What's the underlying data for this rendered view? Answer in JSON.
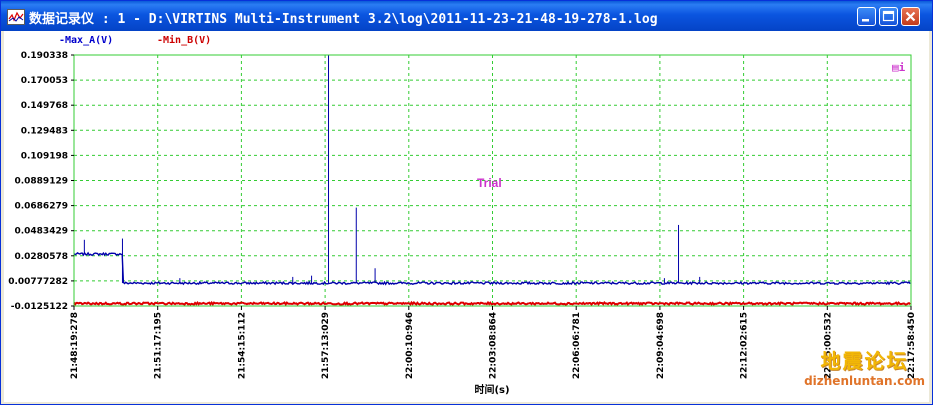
{
  "window": {
    "title": "数据记录仪 : 1 - D:\\VIRTINS Multi-Instrument 3.2\\log\\2011-11-23-21-48-19-278-1.log",
    "title_controls": [
      "minimize",
      "maximize",
      "close"
    ]
  },
  "legend": [
    {
      "label": "-Max_A(V)",
      "color": "#0000cc"
    },
    {
      "label": "-Min_B(V)",
      "color": "#cc0000"
    }
  ],
  "corner_label": "▤i",
  "trial_label": "Trial",
  "watermark": {
    "chinese": "地震论坛",
    "url": "dizhenluntan.com"
  },
  "colors": {
    "plot_border": "#33cc33",
    "grid": "#33cc33",
    "series_a": "#0000aa",
    "series_b": "#dd0000",
    "trial": "#cc33cc",
    "titlebar": "#0b55e0"
  },
  "chart_data": {
    "type": "line",
    "xlabel": "时间(s)",
    "ylabel": "",
    "grid": true,
    "x_ticks": [
      "21:48:19:278",
      "21:51:17:195",
      "21:54:15:112",
      "21:57:13:029",
      "22:00:10:946",
      "22:03:08:864",
      "22:06:06:781",
      "22:09:04:698",
      "22:12:02:615",
      "22:15:00:532",
      "22:17:58:450"
    ],
    "y_ticks": [
      "0.190338",
      "0.170053",
      "0.149768",
      "0.129483",
      "0.109198",
      "0.0889129",
      "0.0686279",
      "0.0483429",
      "0.0280578",
      "0.00777282",
      "-0.0125122"
    ],
    "ylim": [
      -0.0125122,
      0.190338
    ],
    "x_range_seconds": [
      0,
      1779.172
    ],
    "series": [
      {
        "name": "Max_A(V)",
        "baseline": 0.006,
        "initial_segment": {
          "x_end": 103,
          "level": 0.0295,
          "spike": 0.042
        },
        "spikes": [
          {
            "x": 22,
            "y": 0.041
          },
          {
            "x": 225,
            "y": 0.01
          },
          {
            "x": 465,
            "y": 0.011
          },
          {
            "x": 505,
            "y": 0.012
          },
          {
            "x": 541,
            "y": 0.190338
          },
          {
            "x": 600,
            "y": 0.067
          },
          {
            "x": 640,
            "y": 0.018
          },
          {
            "x": 1255,
            "y": 0.01
          },
          {
            "x": 1285,
            "y": 0.053
          },
          {
            "x": 1330,
            "y": 0.011
          }
        ]
      },
      {
        "name": "Min_B(V)",
        "baseline": -0.0105,
        "spikes": []
      }
    ]
  }
}
